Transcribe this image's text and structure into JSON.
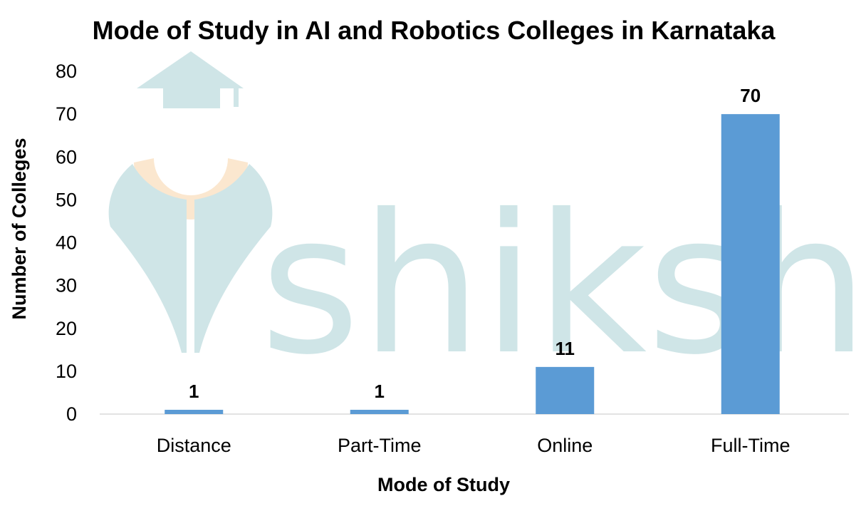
{
  "watermark": {
    "text": "shiksha",
    "icon": "graduate-logo-icon"
  },
  "colors": {
    "bar": "#5b9bd5",
    "axis": "#d9d9d9",
    "watermark": "#cfe5e7",
    "watermark_accent": "#fbe7cf"
  },
  "chart_data": {
    "type": "bar",
    "title": "Mode of Study in AI and Robotics Colleges in Karnataka",
    "xlabel": "Mode of Study",
    "ylabel": "Number of Colleges",
    "categories": [
      "Distance",
      "Part-Time",
      "Online",
      "Full-Time"
    ],
    "values": [
      1,
      1,
      11,
      70
    ],
    "ylim": [
      0,
      80
    ],
    "yticks": [
      0,
      10,
      20,
      30,
      40,
      50,
      60,
      70,
      80
    ],
    "grid": false,
    "legend": "none",
    "data_labels": true
  }
}
